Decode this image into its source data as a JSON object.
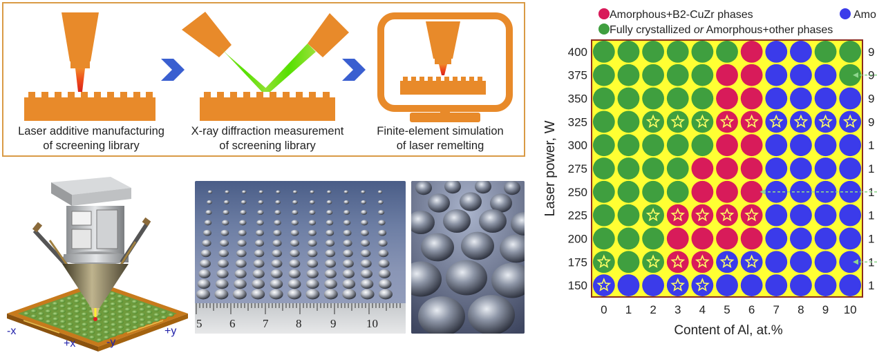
{
  "workflow": {
    "captions": [
      {
        "line1": "Laser additive manufacturing",
        "line2": "of screening library"
      },
      {
        "line1": "X-ray diffraction measurement",
        "line2": "of screening library"
      },
      {
        "line1": "Finite-element simulation",
        "line2": "of laser remelting"
      }
    ]
  },
  "apparatus": {
    "axis_labels": [
      "-x",
      "+x",
      "-y",
      "+y"
    ]
  },
  "photo": {
    "ruler_numbers": [
      "5",
      "6",
      "7",
      "8",
      "9",
      "10"
    ]
  },
  "chart_data": {
    "type": "heatmap",
    "title": "",
    "xlabel": "Content of Al, at.%",
    "ylabel": "Laser power, W",
    "x": [
      0,
      1,
      2,
      3,
      4,
      5,
      6,
      7,
      8,
      9,
      10
    ],
    "y": [
      400,
      375,
      350,
      325,
      300,
      275,
      250,
      225,
      200,
      175,
      150
    ],
    "legend": [
      {
        "key": "R",
        "label": "Amorphous+B2-CuZr phases",
        "color": "#d81b5a"
      },
      {
        "key": "B",
        "label": "Amorphous",
        "color": "#3b3bea"
      },
      {
        "key": "G",
        "label": "Fully crystallized or Amorphous+other phases",
        "color": "#3f9f3f"
      }
    ],
    "legend_parts": {
      "g_pre": "Fully crystallized ",
      "g_or": "or",
      "g_post": " Amorphous+other phases"
    },
    "background_color": "#ffff33",
    "star_marker": "star-icon",
    "grid": [
      "GGGGGGRBBGG",
      "GGGGGRRBBBG",
      "GGGGGRRBBBB",
      "GGGGGRRBBBB",
      "GGGGGRRBBBB",
      "GGGGRRRBBBB",
      "GGGGRRRBBBB",
      "GGGRRRRBBBB",
      "GGGRRRRBBBB",
      "GGGRRBBBBBB",
      "BBBBBBBBBBB"
    ],
    "stars": [
      [
        3,
        2
      ],
      [
        3,
        3
      ],
      [
        3,
        4
      ],
      [
        3,
        5
      ],
      [
        3,
        6
      ],
      [
        3,
        7
      ],
      [
        3,
        8
      ],
      [
        3,
        9
      ],
      [
        3,
        10
      ],
      [
        7,
        2
      ],
      [
        7,
        3
      ],
      [
        7,
        4
      ],
      [
        7,
        5
      ],
      [
        7,
        6
      ],
      [
        9,
        0
      ],
      [
        9,
        2
      ],
      [
        9,
        3
      ],
      [
        9,
        4
      ],
      [
        9,
        5
      ],
      [
        9,
        6
      ],
      [
        10,
        0
      ],
      [
        10,
        3
      ],
      [
        10,
        4
      ]
    ],
    "right_labels": [
      "9",
      "9",
      "9",
      "9",
      "1",
      "1",
      "1",
      "1",
      "1",
      "1",
      "1"
    ],
    "arrow_rows": [
      1,
      6,
      9
    ]
  }
}
